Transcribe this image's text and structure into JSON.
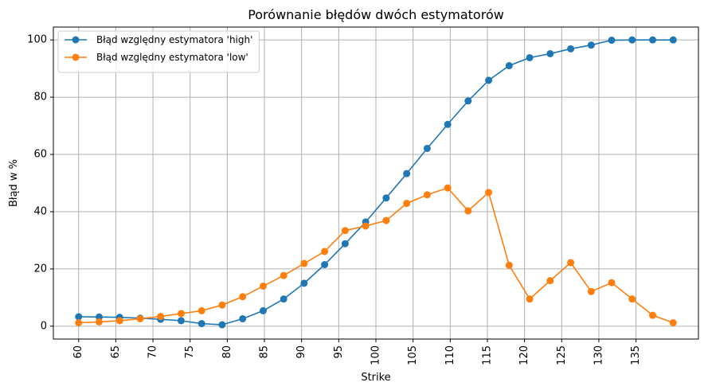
{
  "chart_data": {
    "type": "line",
    "title": "Porównanie błędów dwóch estymatorów",
    "xlabel": "Strike",
    "ylabel": "Błąd w %",
    "xlim": [
      56.6,
      143.4
    ],
    "ylim": [
      -4.5,
      104.5
    ],
    "xticks": [
      60,
      65,
      70,
      75,
      80,
      85,
      90,
      95,
      100,
      105,
      110,
      115,
      120,
      125,
      130,
      135
    ],
    "yticks": [
      0,
      20,
      40,
      60,
      80,
      100
    ],
    "grid": true,
    "legend_position": "top-left",
    "x": [
      60.0,
      62.76,
      65.52,
      68.28,
      71.03,
      73.79,
      76.55,
      79.31,
      82.07,
      84.83,
      87.59,
      90.34,
      93.1,
      95.86,
      98.62,
      101.38,
      104.14,
      106.9,
      109.66,
      112.41,
      115.17,
      117.93,
      120.69,
      123.45,
      126.21,
      128.97,
      131.72,
      134.48,
      137.24,
      140.0
    ],
    "series": [
      {
        "name": "Błąd względny estymatora 'high'",
        "color": "#1f77b4",
        "values": [
          3.3,
          3.2,
          3.1,
          2.8,
          2.4,
          1.9,
          0.9,
          0.5,
          2.6,
          5.4,
          9.5,
          15.0,
          21.5,
          28.8,
          36.4,
          44.8,
          53.3,
          62.1,
          70.5,
          78.7,
          85.9,
          91.0,
          93.8,
          95.2,
          96.9,
          98.2,
          99.9,
          100.0,
          100.0,
          100.0
        ]
      },
      {
        "name": "Błąd względny estymatora 'low'",
        "color": "#ff7f0e",
        "values": [
          1.2,
          1.5,
          1.9,
          2.6,
          3.4,
          4.4,
          5.4,
          7.4,
          10.3,
          14.0,
          17.7,
          21.9,
          26.1,
          33.4,
          35.0,
          36.9,
          42.9,
          45.9,
          48.3,
          40.3,
          46.7,
          21.3,
          9.5,
          15.9,
          22.2,
          12.1,
          15.2,
          9.5,
          3.8,
          1.2
        ]
      }
    ]
  }
}
